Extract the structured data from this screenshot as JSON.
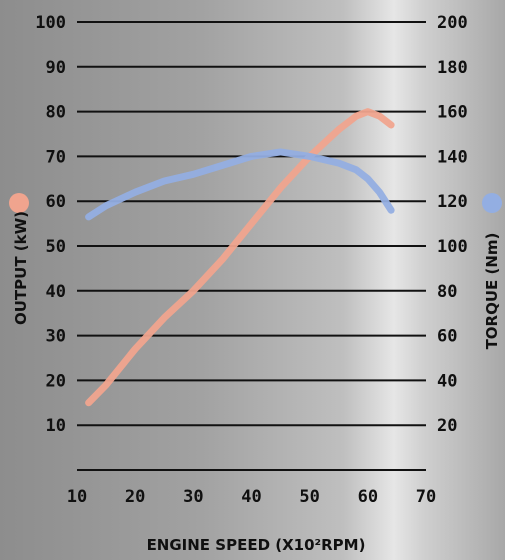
{
  "chart_data": {
    "type": "line",
    "title": "",
    "xlabel": "ENGINE SPEED (X10²RPM)",
    "ylabel_left": "OUTPUT (kW)",
    "ylabel_right": "TORQUE (Nm)",
    "xlim": [
      10,
      70
    ],
    "ylim_left": [
      0,
      100
    ],
    "ylim_right": [
      0,
      200
    ],
    "x_ticks": [
      10,
      20,
      30,
      40,
      50,
      60,
      70
    ],
    "y_ticks_left": [
      10,
      20,
      30,
      40,
      50,
      60,
      70,
      80,
      90,
      100
    ],
    "y_ticks_right": [
      20,
      40,
      60,
      80,
      100,
      120,
      140,
      160,
      180,
      200
    ],
    "grid": true,
    "series": [
      {
        "name": "OUTPUT (kW)",
        "axis": "left",
        "color": "#f0a48e",
        "x": [
          12,
          15,
          20,
          25,
          30,
          35,
          40,
          45,
          50,
          55,
          58,
          60,
          62,
          64
        ],
        "y": [
          15,
          19,
          27,
          34,
          40,
          47,
          55,
          63,
          70,
          76,
          79,
          80,
          79,
          77
        ]
      },
      {
        "name": "TORQUE (Nm)",
        "axis": "right",
        "color": "#93aee2",
        "x": [
          12,
          15,
          20,
          25,
          30,
          35,
          40,
          45,
          50,
          55,
          58,
          60,
          62,
          64
        ],
        "y": [
          113,
          118,
          124,
          129,
          132,
          136,
          140,
          142,
          140,
          137,
          134,
          130,
          124,
          116
        ]
      }
    ]
  }
}
